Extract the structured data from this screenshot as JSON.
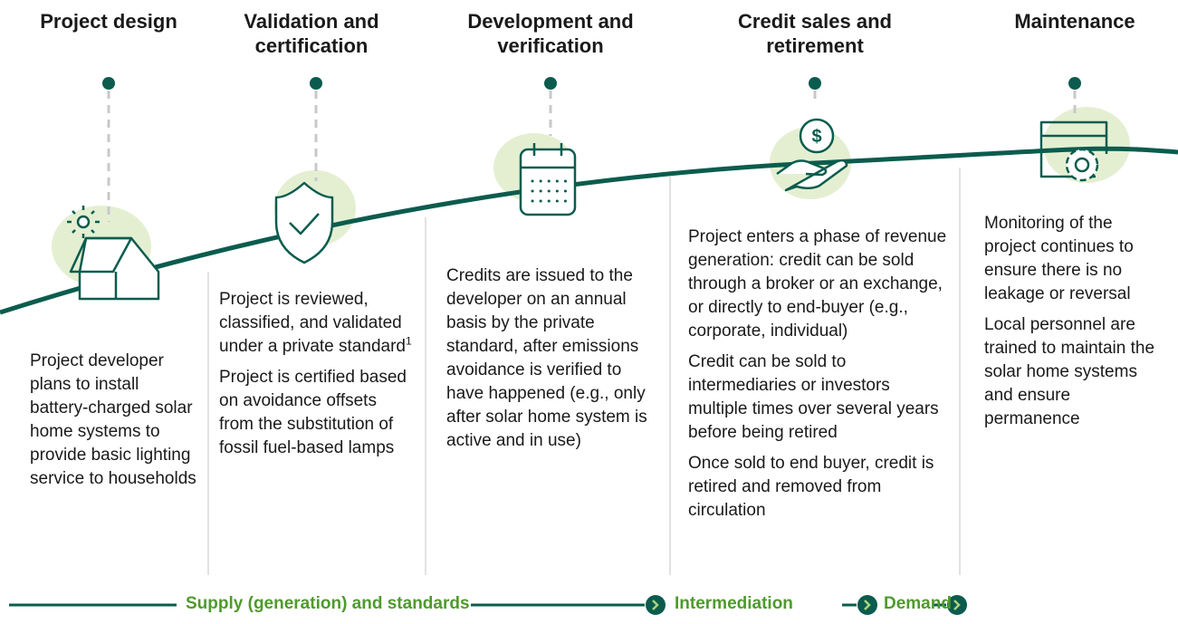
{
  "stages": [
    {
      "title": "Project design",
      "paragraphs": [
        "Project developer plans to install battery-charged solar home systems to provide basic lighting service to households"
      ]
    },
    {
      "title": "Validation and certification",
      "paragraphs": [
        {
          "text": "Project is reviewed, classified, and validated under a private standard",
          "footnote": "1"
        },
        "Project is certified based on avoidance offsets from the substitution of fossil fuel-based lamps"
      ]
    },
    {
      "title": "Development and verification",
      "paragraphs": [
        "Credits are issued to the developer on an annual basis by the private standard, after emissions avoidance is verified to have happened (e.g., only after solar home system is active and in use)"
      ]
    },
    {
      "title": "Credit sales and retirement",
      "paragraphs": [
        "Project enters a phase of revenue generation: credit can be sold through a broker or an exchange, or directly to end-buyer (e.g., corporate, individual)",
        "Credit can be sold to intermediaries or investors multiple times over several years before being retired",
        "Once sold to end buyer, credit is retired and removed from circulation"
      ]
    },
    {
      "title": "Maintenance",
      "paragraphs": [
        "Monitoring of the project continues to ensure there is no leakage or reversal",
        "Local personnel are trained to maintain the solar home systems and ensure permanence"
      ]
    }
  ],
  "footer": [
    "Supply (generation) and standards",
    "Intermediation",
    "Demand"
  ]
}
